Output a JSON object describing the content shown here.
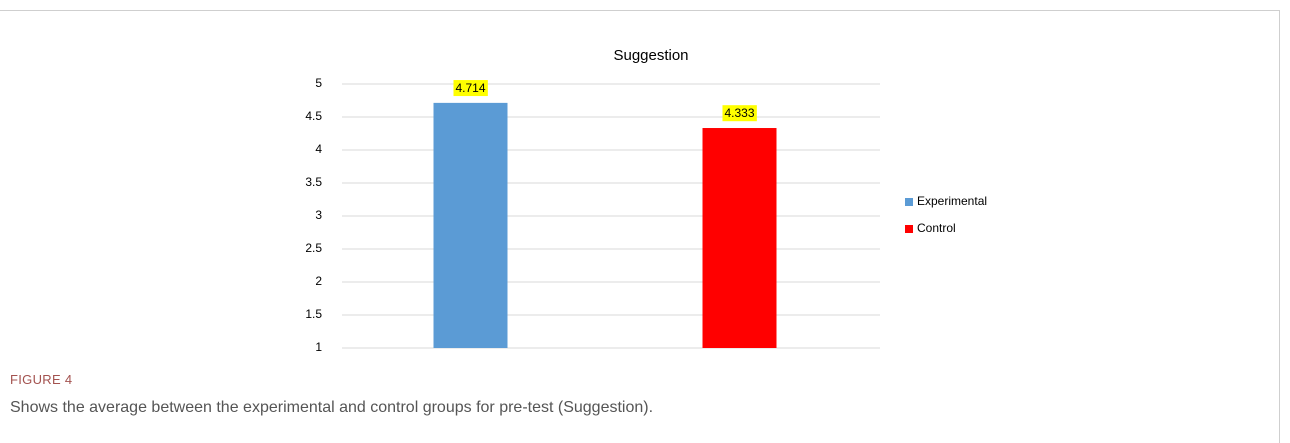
{
  "chart_data": {
    "type": "bar",
    "title": "Suggestion",
    "categories": [
      null
    ],
    "series": [
      {
        "name": "Experimental",
        "color": "#5b9bd5",
        "values": [
          4.714
        ]
      },
      {
        "name": "Control",
        "color": "#ff0000",
        "values": [
          4.333
        ]
      }
    ],
    "ylim": [
      1,
      5
    ],
    "yticks": [
      1,
      1.5,
      2,
      2.5,
      3,
      3.5,
      4,
      4.5,
      5
    ],
    "grid": true,
    "legend": "right",
    "value_label_background": "#ffff00"
  },
  "figure_label": "FIGURE 4",
  "caption": "Shows the average between the experimental and control groups for pre-test (Suggestion)."
}
